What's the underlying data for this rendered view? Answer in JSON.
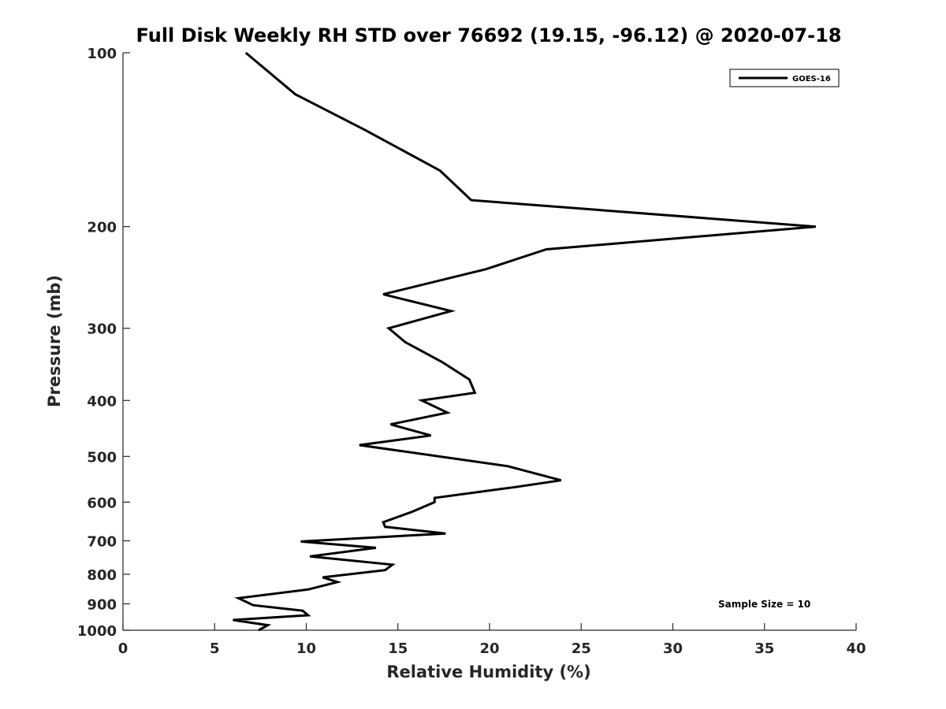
{
  "chart_data": {
    "type": "line",
    "title": "Full Disk Weekly RH STD over 76692 (19.15, -96.12) @ 2020-07-18",
    "xlabel": "Relative Humidity (%)",
    "ylabel": "Pressure (mb)",
    "xlim": [
      0,
      40
    ],
    "ylim": [
      100,
      1000
    ],
    "y_scale": "log",
    "y_reversed": true,
    "x_ticks": [
      0,
      5,
      10,
      15,
      20,
      25,
      30,
      35,
      40
    ],
    "y_ticks": [
      100,
      200,
      300,
      400,
      500,
      600,
      700,
      800,
      900,
      1000
    ],
    "grid": false,
    "legend": {
      "position": "top-right",
      "entries": [
        "GOES-16"
      ]
    },
    "annotations": [
      {
        "text": "Sample Size = 10",
        "position": "bottom-right"
      }
    ],
    "series": [
      {
        "name": "GOES-16",
        "color": "#000000",
        "x": [
          6.7,
          9.4,
          13.2,
          17.3,
          19.0,
          37.8,
          23.1,
          19.8,
          14.2,
          17.9,
          14.5,
          15.4,
          17.4,
          18.9,
          19.2,
          16.3,
          17.7,
          14.6,
          16.8,
          12.9,
          21.0,
          23.9,
          21.4,
          17.0,
          17.0,
          15.8,
          14.2,
          14.3,
          17.6,
          9.7,
          13.8,
          10.2,
          14.7,
          14.3,
          10.9,
          11.7,
          10.1,
          6.3,
          7.1,
          9.8,
          10.1,
          6.0,
          7.9,
          7.4
        ],
        "y": [
          100,
          118,
          136,
          160,
          180,
          200,
          219,
          237,
          262,
          280,
          300,
          317,
          343,
          368,
          388,
          400,
          420,
          440,
          460,
          478,
          520,
          550,
          565,
          590,
          600,
          623,
          650,
          662,
          680,
          702,
          720,
          745,
          770,
          787,
          810,
          825,
          850,
          880,
          905,
          925,
          942,
          960,
          980,
          1000
        ]
      }
    ]
  }
}
